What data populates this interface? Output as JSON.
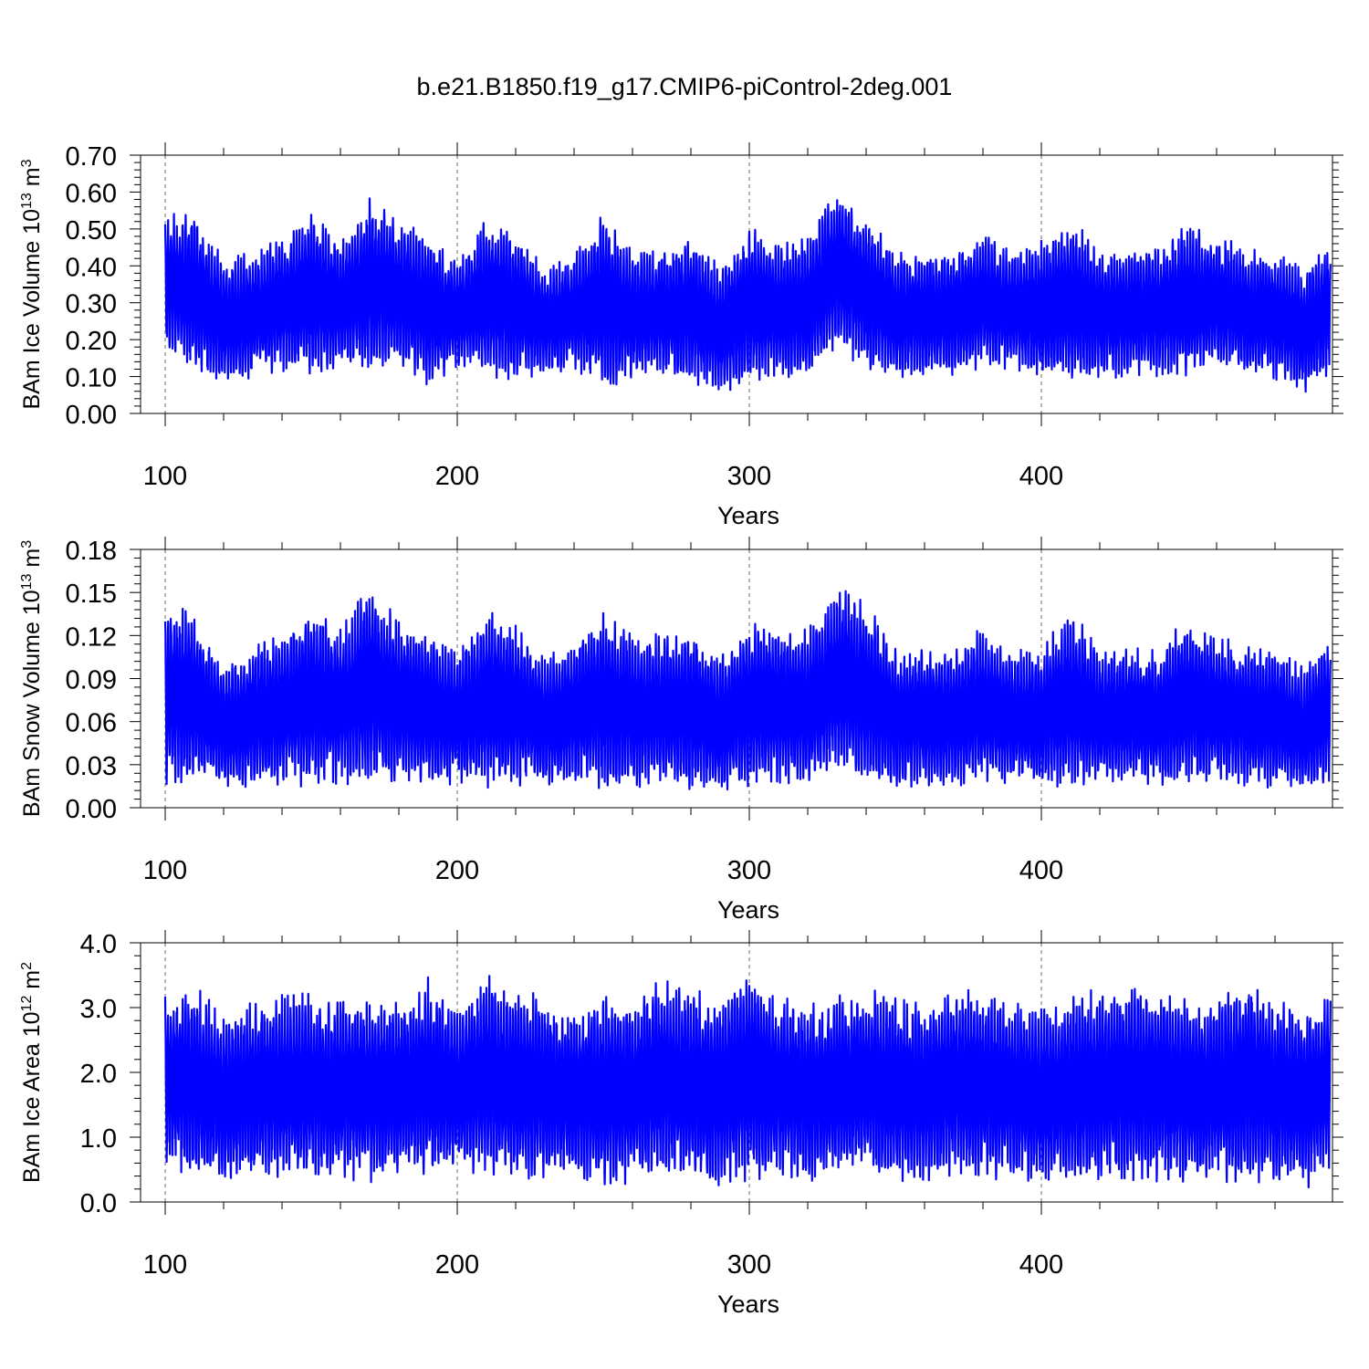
{
  "title": "b.e21.B1850.f19_g17.CMIP6-piControl-2deg.001",
  "line_color": "#0000ff",
  "chart_data": [
    {
      "type": "line",
      "title": "",
      "xlabel": "Years",
      "ylabel": "BAm Ice Volume 10",
      "ylabel_exp": "13",
      "ylabel_unit": " m",
      "ylabel_unit_exp": "3",
      "xlim": [
        100,
        499
      ],
      "ylim": [
        0,
        0.7
      ],
      "xticks": [
        100,
        200,
        300,
        400
      ],
      "yticks": [
        "0.00",
        "0.10",
        "0.20",
        "0.30",
        "0.40",
        "0.50",
        "0.60",
        "0.70"
      ],
      "grid": "vertical dashed at major x ticks",
      "series": [
        {
          "color": "#0000ff",
          "x": [
            100,
            110,
            120,
            130,
            140,
            150,
            160,
            170,
            180,
            190,
            200,
            210,
            220,
            230,
            240,
            250,
            260,
            270,
            280,
            290,
            300,
            310,
            320,
            330,
            340,
            350,
            360,
            370,
            380,
            390,
            400,
            410,
            420,
            430,
            440,
            450,
            460,
            470,
            480,
            490,
            499
          ],
          "max": [
            0.54,
            0.55,
            0.42,
            0.44,
            0.48,
            0.55,
            0.47,
            0.59,
            0.52,
            0.5,
            0.42,
            0.53,
            0.5,
            0.4,
            0.43,
            0.55,
            0.44,
            0.45,
            0.48,
            0.4,
            0.51,
            0.46,
            0.48,
            0.61,
            0.54,
            0.44,
            0.44,
            0.45,
            0.49,
            0.44,
            0.47,
            0.53,
            0.46,
            0.45,
            0.46,
            0.51,
            0.49,
            0.45,
            0.44,
            0.4,
            0.47
          ],
          "min": [
            0.18,
            0.1,
            0.08,
            0.09,
            0.11,
            0.1,
            0.12,
            0.11,
            0.13,
            0.07,
            0.12,
            0.1,
            0.09,
            0.1,
            0.12,
            0.05,
            0.09,
            0.1,
            0.08,
            0.05,
            0.08,
            0.1,
            0.09,
            0.18,
            0.11,
            0.09,
            0.1,
            0.1,
            0.12,
            0.12,
            0.08,
            0.08,
            0.09,
            0.1,
            0.1,
            0.09,
            0.12,
            0.1,
            0.09,
            0.05,
            0.11
          ]
        }
      ]
    },
    {
      "type": "line",
      "title": "",
      "xlabel": "Years",
      "ylabel": "BAm Snow Volume 10",
      "ylabel_exp": "13",
      "ylabel_unit": " m",
      "ylabel_unit_exp": "3",
      "xlim": [
        100,
        499
      ],
      "ylim": [
        0,
        0.18
      ],
      "xticks": [
        100,
        200,
        300,
        400
      ],
      "yticks": [
        "0.00",
        "0.03",
        "0.06",
        "0.09",
        "0.12",
        "0.15",
        "0.18"
      ],
      "grid": "vertical dashed at major x ticks",
      "series": [
        {
          "color": "#0000ff",
          "x": [
            100,
            110,
            120,
            130,
            140,
            150,
            160,
            170,
            180,
            190,
            200,
            210,
            220,
            230,
            240,
            250,
            260,
            270,
            280,
            290,
            300,
            310,
            320,
            330,
            340,
            350,
            360,
            370,
            380,
            390,
            400,
            410,
            420,
            430,
            440,
            450,
            460,
            470,
            480,
            490,
            499
          ],
          "max": [
            0.144,
            0.138,
            0.1,
            0.115,
            0.122,
            0.141,
            0.125,
            0.158,
            0.131,
            0.125,
            0.108,
            0.139,
            0.128,
            0.105,
            0.118,
            0.143,
            0.12,
            0.122,
            0.125,
            0.11,
            0.133,
            0.128,
            0.125,
            0.155,
            0.143,
            0.112,
            0.113,
            0.11,
            0.127,
            0.11,
            0.113,
            0.14,
            0.11,
            0.113,
            0.112,
            0.133,
            0.122,
            0.113,
            0.112,
            0.1,
            0.12
          ],
          "min": [
            0.015,
            0.018,
            0.014,
            0.012,
            0.015,
            0.014,
            0.016,
            0.013,
            0.018,
            0.012,
            0.015,
            0.013,
            0.014,
            0.015,
            0.016,
            0.01,
            0.014,
            0.015,
            0.012,
            0.007,
            0.014,
            0.016,
            0.015,
            0.025,
            0.018,
            0.013,
            0.014,
            0.015,
            0.016,
            0.017,
            0.011,
            0.012,
            0.014,
            0.015,
            0.015,
            0.014,
            0.016,
            0.015,
            0.013,
            0.01,
            0.016
          ]
        }
      ]
    },
    {
      "type": "line",
      "title": "",
      "xlabel": "Years",
      "ylabel": "BAm Ice Area 10",
      "ylabel_exp": "12",
      "ylabel_unit": " m",
      "ylabel_unit_exp": "2",
      "xlim": [
        100,
        499
      ],
      "ylim": [
        0,
        4.0
      ],
      "xticks": [
        100,
        200,
        300,
        400
      ],
      "yticks": [
        "0.0",
        "1.0",
        "2.0",
        "3.0",
        "4.0"
      ],
      "grid": "vertical dashed at major x ticks",
      "series": [
        {
          "color": "#0000ff",
          "x": [
            100,
            110,
            120,
            130,
            140,
            150,
            160,
            170,
            180,
            190,
            200,
            210,
            220,
            230,
            240,
            250,
            260,
            270,
            280,
            290,
            300,
            310,
            320,
            330,
            340,
            350,
            360,
            370,
            380,
            390,
            400,
            410,
            420,
            430,
            440,
            450,
            460,
            470,
            480,
            490,
            499
          ],
          "max": [
            3.2,
            3.35,
            2.9,
            3.1,
            3.2,
            3.25,
            3.1,
            3.2,
            3.1,
            3.5,
            3.0,
            3.52,
            3.3,
            3.2,
            3.0,
            3.25,
            3.1,
            3.45,
            3.3,
            3.2,
            3.6,
            3.2,
            3.1,
            3.2,
            3.3,
            3.2,
            3.1,
            3.3,
            3.25,
            3.1,
            3.0,
            3.2,
            3.3,
            3.3,
            3.35,
            3.2,
            3.1,
            3.45,
            3.2,
            3.05,
            3.25
          ],
          "min": [
            0.5,
            0.35,
            0.28,
            0.3,
            0.32,
            0.3,
            0.35,
            0.3,
            0.4,
            0.3,
            0.45,
            0.4,
            0.3,
            0.35,
            0.35,
            0.15,
            0.3,
            0.35,
            0.3,
            0.18,
            0.3,
            0.35,
            0.3,
            0.35,
            0.4,
            0.3,
            0.3,
            0.35,
            0.3,
            0.35,
            0.22,
            0.25,
            0.3,
            0.3,
            0.3,
            0.28,
            0.3,
            0.3,
            0.25,
            0.18,
            0.4
          ]
        }
      ]
    }
  ]
}
